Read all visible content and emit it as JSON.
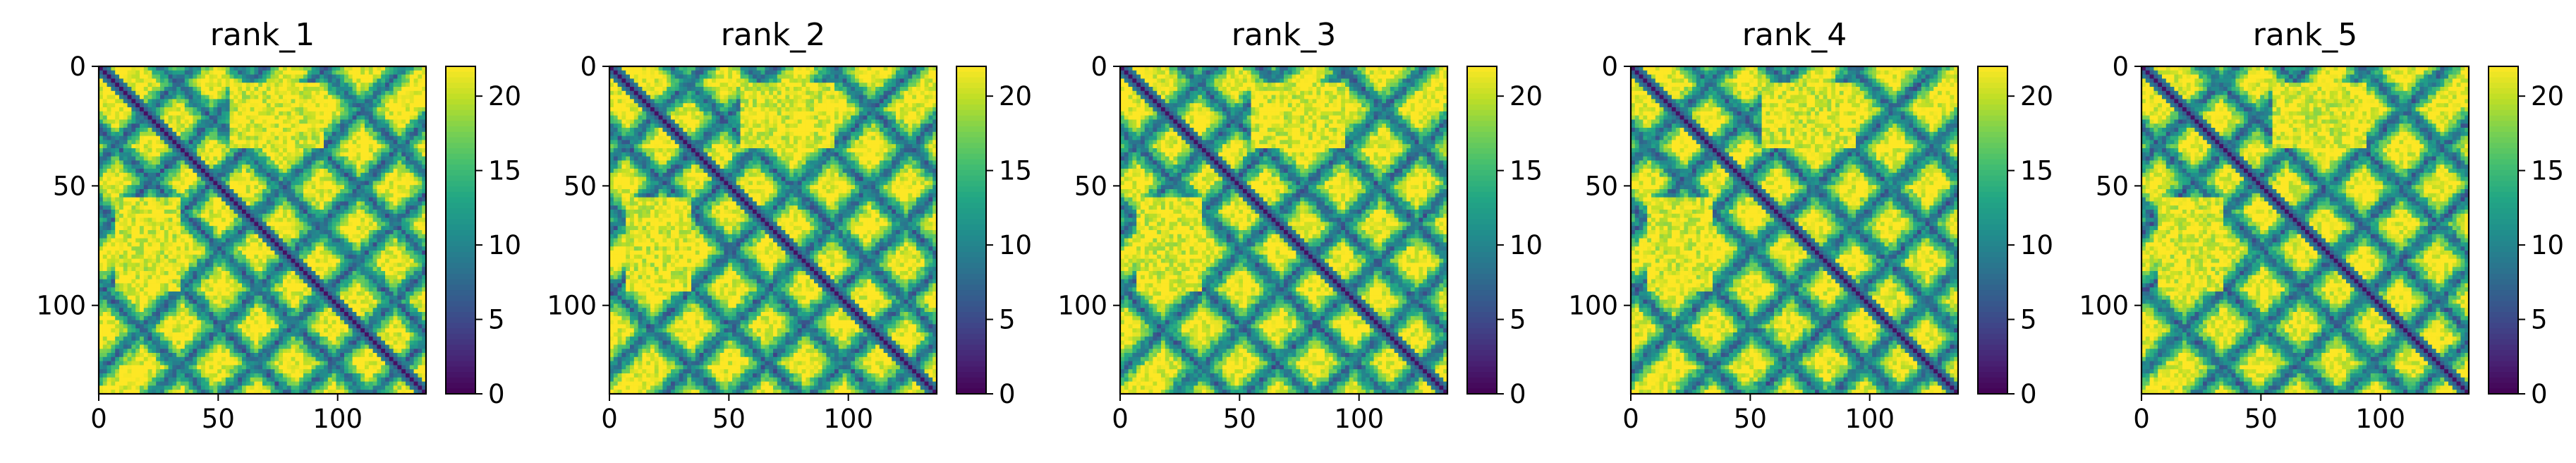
{
  "chart_data": [
    {
      "type": "heatmap",
      "title": "rank_1",
      "x_ticks": [
        "0",
        "50",
        "100"
      ],
      "y_ticks": [
        "0",
        "50",
        "100"
      ],
      "xlim": [
        0,
        137
      ],
      "ylim": [
        137,
        0
      ],
      "colorbar": {
        "ticks": [
          "0",
          "5",
          "10",
          "15",
          "20"
        ],
        "range": [
          0,
          22
        ],
        "colormap": "viridis"
      }
    },
    {
      "type": "heatmap",
      "title": "rank_2",
      "x_ticks": [
        "0",
        "50",
        "100"
      ],
      "y_ticks": [
        "0",
        "50",
        "100"
      ],
      "xlim": [
        0,
        137
      ],
      "ylim": [
        137,
        0
      ],
      "colorbar": {
        "ticks": [
          "0",
          "5",
          "10",
          "15",
          "20"
        ],
        "range": [
          0,
          22
        ],
        "colormap": "viridis"
      }
    },
    {
      "type": "heatmap",
      "title": "rank_3",
      "x_ticks": [
        "0",
        "50",
        "100"
      ],
      "y_ticks": [
        "0",
        "50",
        "100"
      ],
      "xlim": [
        0,
        137
      ],
      "ylim": [
        137,
        0
      ],
      "colorbar": {
        "ticks": [
          "0",
          "5",
          "10",
          "15",
          "20"
        ],
        "range": [
          0,
          22
        ],
        "colormap": "viridis"
      }
    },
    {
      "type": "heatmap",
      "title": "rank_4",
      "x_ticks": [
        "0",
        "50",
        "100"
      ],
      "y_ticks": [
        "0",
        "50",
        "100"
      ],
      "xlim": [
        0,
        137
      ],
      "ylim": [
        137,
        0
      ],
      "colorbar": {
        "ticks": [
          "0",
          "5",
          "10",
          "15",
          "20"
        ],
        "range": [
          0,
          22
        ],
        "colormap": "viridis"
      }
    },
    {
      "type": "heatmap",
      "title": "rank_5",
      "x_ticks": [
        "0",
        "50",
        "100"
      ],
      "y_ticks": [
        "0",
        "50",
        "100"
      ],
      "xlim": [
        0,
        137
      ],
      "ylim": [
        137,
        0
      ],
      "colorbar": {
        "ticks": [
          "0",
          "5",
          "10",
          "15",
          "20"
        ],
        "range": [
          0,
          22
        ],
        "colormap": "viridis"
      }
    }
  ]
}
